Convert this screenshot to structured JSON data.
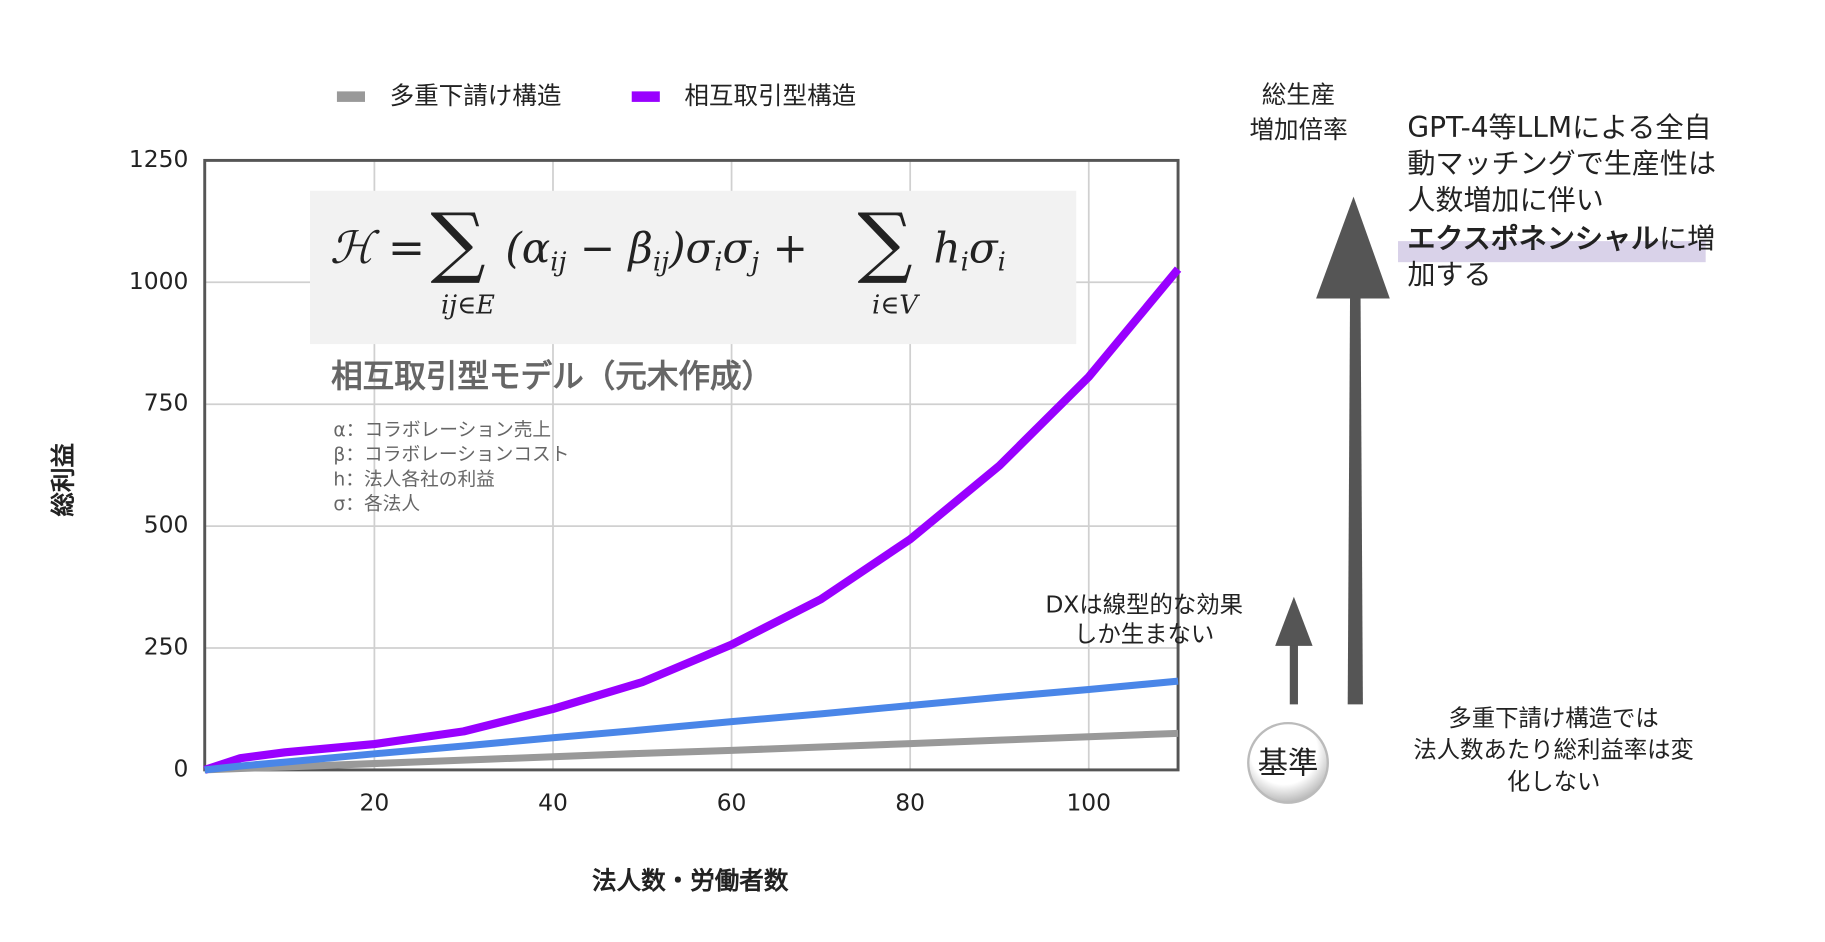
{
  "chart_data": {
    "type": "line",
    "x": [
      1,
      5,
      10,
      20,
      30,
      40,
      50,
      60,
      70,
      80,
      90,
      100,
      110
    ],
    "series": [
      {
        "name": "多重下請け構造",
        "color": "#999999",
        "values": [
          0,
          3,
          6,
          13,
          20,
          27,
          34,
          40,
          47,
          54,
          61,
          68,
          75
        ]
      },
      {
        "name": "相互取引型構造",
        "color": "#9900ff",
        "values": [
          0,
          24,
          36,
          53,
          79,
          125,
          180,
          257,
          350,
          473,
          624,
          806,
          1027
        ]
      },
      {
        "color": "#4a86e8",
        "values": [
          0,
          8,
          16,
          33,
          49,
          66,
          82,
          99,
          115,
          132,
          149,
          165,
          182
        ]
      }
    ],
    "xlim": [
      1,
      110
    ],
    "xticks": [
      20,
      40,
      60,
      80,
      100
    ],
    "ylim": [
      0,
      1250
    ],
    "yticks": [
      0,
      250,
      500,
      750,
      1000,
      1250
    ],
    "grid": true,
    "legend": "top",
    "xlabel": "法人数・労働者数",
    "ylabel": "総利益",
    "formula": {
      "lhs": "ℋ =",
      "sum1": {
        "symbol": "∑",
        "under": "ij∈E"
      },
      "mid": [
        {
          "text": "(α"
        },
        {
          "text": "ij",
          "sub": true
        },
        {
          "text": " − β"
        },
        {
          "text": "ij",
          "sub": true
        },
        {
          "text": ")σ"
        },
        {
          "text": "i",
          "sub": true
        },
        {
          "text": "σ"
        },
        {
          "text": "j",
          "sub": true
        },
        {
          "text": " +"
        }
      ],
      "sum2": {
        "symbol": "∑",
        "under": "i∈V"
      },
      "tail": [
        {
          "text": "h"
        },
        {
          "text": "i",
          "sub": true
        },
        {
          "text": "σ"
        },
        {
          "text": "i",
          "sub": true
        }
      ]
    },
    "model_title": "相互取引型モデル（元木作成）",
    "model_notes": [
      "α：コラボレーション売上",
      "β：コラボレーションコスト",
      " h：法人各社の利益",
      "σ：各法人"
    ],
    "dx_note": [
      "DXは線型的な効果",
      "しか生まない"
    ],
    "base_label": "基準",
    "base_note": [
      "多重下請け構造では",
      "法人数あたり総利益率は変",
      "化しない"
    ],
    "growth_label": [
      "総生産",
      "増加倍率"
    ],
    "gpt_note": {
      "lines": [
        "GPT-4等LLMによる全自",
        "動マッチングで生産性は",
        "人数増加に伴い"
      ],
      "bold": "エクスポネンシャル",
      "rest": "に増",
      "last": "加する"
    }
  }
}
